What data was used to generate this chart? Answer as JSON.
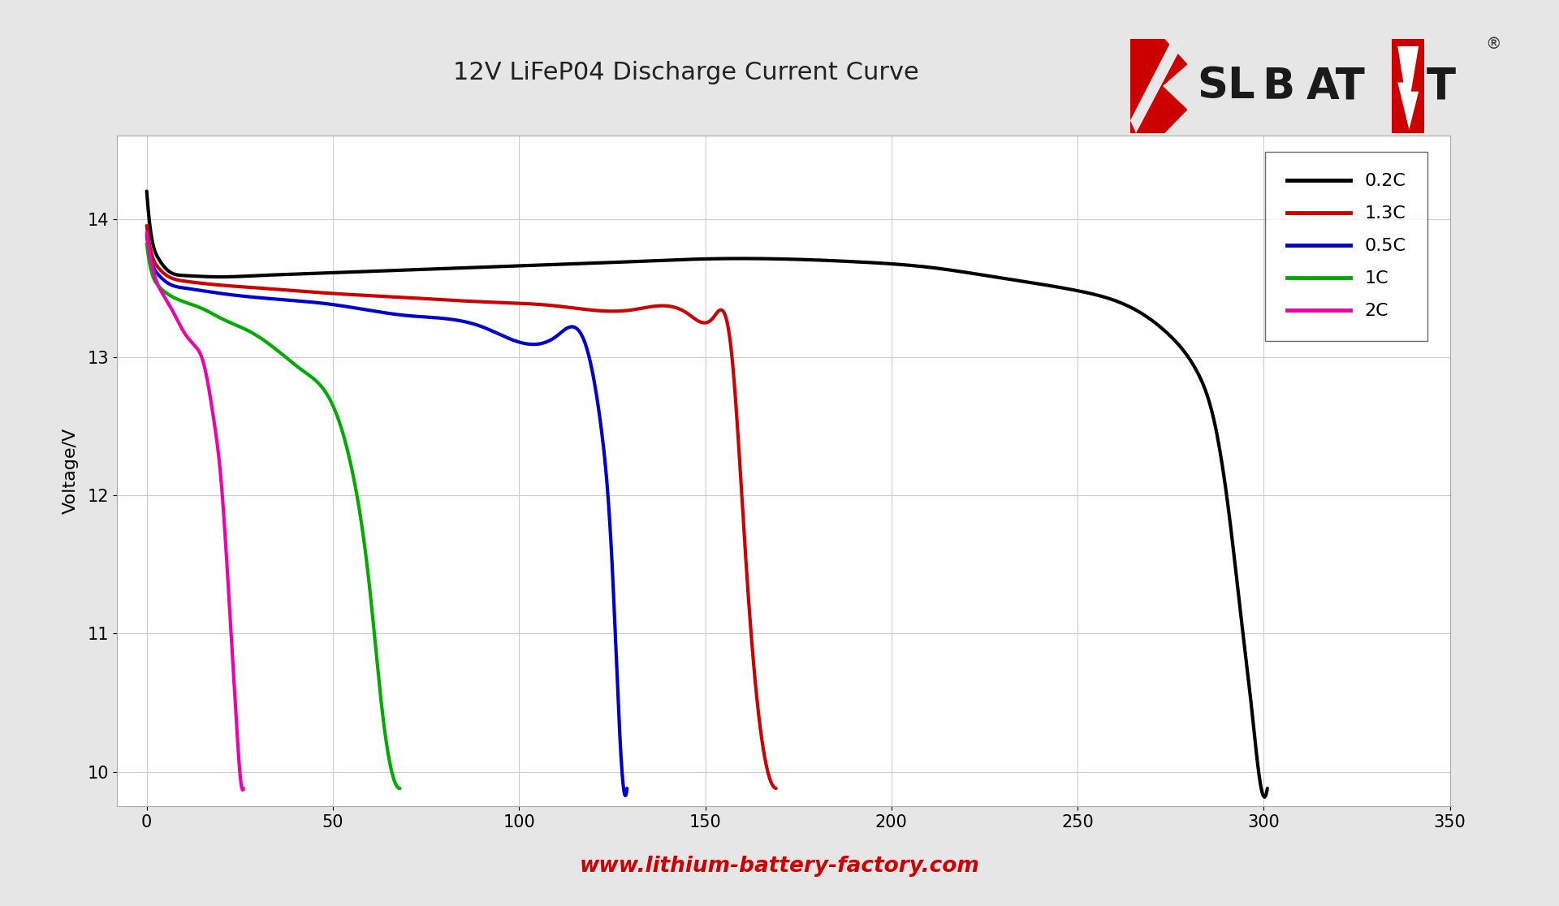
{
  "title": "12V LiFeP04 Discharge Current Curve",
  "ylabel": "Voltage/V",
  "website": "www.lithium-battery-factory.com",
  "bg_color": "#e6e6e6",
  "plot_bg_color": "#ffffff",
  "xlim": [
    -8,
    350
  ],
  "ylim": [
    9.75,
    14.6
  ],
  "xticks": [
    0,
    50,
    100,
    150,
    200,
    250,
    300,
    350
  ],
  "yticks": [
    10,
    11,
    12,
    13,
    14
  ],
  "grid_color": "#cccccc",
  "title_fontsize": 22,
  "axis_fontsize": 16,
  "tick_fontsize": 15,
  "legend_fontsize": 16,
  "curves": {
    "0.2C": {
      "color": "#000000",
      "linewidth": 3.0,
      "x": [
        0,
        1,
        3,
        6,
        10,
        20,
        30,
        40,
        50,
        70,
        90,
        110,
        130,
        150,
        170,
        190,
        210,
        230,
        250,
        265,
        275,
        282,
        287,
        291,
        294,
        297,
        299,
        301
      ],
      "y": [
        14.2,
        13.92,
        13.72,
        13.62,
        13.59,
        13.58,
        13.59,
        13.6,
        13.61,
        13.63,
        13.65,
        13.67,
        13.69,
        13.71,
        13.71,
        13.69,
        13.65,
        13.57,
        13.48,
        13.35,
        13.15,
        12.9,
        12.5,
        11.8,
        11.1,
        10.4,
        9.93,
        9.88
      ]
    },
    "1.3C": {
      "color": "#cc0000",
      "linewidth": 3.0,
      "x": [
        0,
        1,
        3,
        6,
        10,
        20,
        30,
        50,
        70,
        90,
        110,
        130,
        145,
        152,
        157,
        161,
        164,
        167,
        169
      ],
      "y": [
        13.95,
        13.78,
        13.65,
        13.58,
        13.55,
        13.52,
        13.5,
        13.46,
        13.43,
        13.4,
        13.37,
        13.34,
        13.32,
        13.28,
        13.05,
        11.5,
        10.5,
        9.98,
        9.88
      ]
    },
    "0.5C": {
      "color": "#0000cc",
      "linewidth": 3.0,
      "x": [
        0,
        1,
        3,
        6,
        10,
        20,
        30,
        50,
        70,
        90,
        110,
        118,
        122,
        125,
        127,
        129
      ],
      "y": [
        13.88,
        13.72,
        13.6,
        13.53,
        13.5,
        13.46,
        13.43,
        13.38,
        13.3,
        13.22,
        13.15,
        13.08,
        12.5,
        11.5,
        10.3,
        9.88
      ]
    },
    "1C": {
      "color": "#00aa00",
      "linewidth": 3.0,
      "x": [
        0,
        1,
        3,
        6,
        10,
        15,
        20,
        28,
        35,
        42,
        50,
        55,
        60,
        63,
        66,
        68
      ],
      "y": [
        13.82,
        13.65,
        13.52,
        13.45,
        13.4,
        13.35,
        13.28,
        13.18,
        13.05,
        12.9,
        12.65,
        12.2,
        11.3,
        10.5,
        9.98,
        9.88
      ]
    },
    "2C": {
      "color": "#ee00aa",
      "linewidth": 3.0,
      "x": [
        0,
        1,
        2,
        4,
        6,
        8,
        10,
        13,
        15,
        18,
        20,
        22,
        24,
        25,
        26
      ],
      "y": [
        13.9,
        13.72,
        13.6,
        13.47,
        13.38,
        13.28,
        13.18,
        13.08,
        12.98,
        12.55,
        12.1,
        11.3,
        10.4,
        10.0,
        9.88
      ]
    }
  },
  "legend_order": [
    "0.2C",
    "1.3C",
    "0.5C",
    "1C",
    "2C"
  ]
}
